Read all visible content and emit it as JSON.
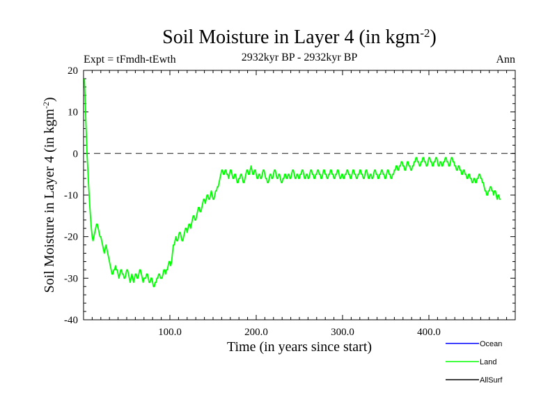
{
  "chart_data": {
    "type": "line",
    "title": "Soil Moisture in Layer 4 (in kgm",
    "title_sup": "-2",
    "title_close": ")",
    "subtitle": "2932kyr BP - 2932kyr BP",
    "left_label": "Expt = tFmdh-tEwth",
    "right_label": "Ann",
    "xlabel": "Time (in years since start)",
    "ylabel": "Soil Moisture in Layer 4 (in kgm",
    "ylabel_sup": "-2",
    "ylabel_close": ")",
    "xlim": [
      0,
      500
    ],
    "ylim": [
      -40,
      20
    ],
    "x_ticks": [
      100,
      200,
      300,
      400
    ],
    "x_tick_labels": [
      "100.0",
      "200.0",
      "300.0",
      "400.0"
    ],
    "y_ticks": [
      -40,
      -30,
      -20,
      -10,
      0,
      10,
      20
    ],
    "y_tick_labels": [
      "-40",
      "-30",
      "-20",
      "-10",
      "0",
      "10",
      "20"
    ],
    "reference_line": 0,
    "series": [
      {
        "name": "Land",
        "color": "#00ff00",
        "x_start": 1,
        "x_step": 1,
        "values": [
          18.0,
          12.0,
          6.0,
          0.0,
          -4.0,
          -8.0,
          -12.0,
          -15.0,
          -18.0,
          -20.0,
          -21.0,
          -20.0,
          -19.0,
          -18.0,
          -17.0,
          -17.0,
          -18.0,
          -19.0,
          -20.0,
          -20.0,
          -21.0,
          -22.0,
          -23.0,
          -24.0,
          -23.0,
          -22.0,
          -23.0,
          -24.0,
          -25.0,
          -26.0,
          -27.0,
          -28.0,
          -29.0,
          -29.0,
          -28.0,
          -28.0,
          -27.0,
          -28.0,
          -28.0,
          -29.0,
          -30.0,
          -29.0,
          -28.0,
          -28.0,
          -29.0,
          -29.0,
          -30.0,
          -30.0,
          -29.0,
          -28.0,
          -28.0,
          -29.0,
          -30.0,
          -31.0,
          -30.0,
          -29.0,
          -30.0,
          -31.0,
          -30.0,
          -29.0,
          -29.0,
          -30.0,
          -30.0,
          -29.0,
          -28.0,
          -28.0,
          -29.0,
          -30.0,
          -31.0,
          -30.0,
          -30.0,
          -30.0,
          -29.0,
          -29.0,
          -30.0,
          -31.0,
          -31.0,
          -30.0,
          -30.0,
          -31.0,
          -32.0,
          -32.0,
          -31.0,
          -31.0,
          -30.0,
          -30.0,
          -29.0,
          -29.0,
          -30.0,
          -30.0,
          -30.0,
          -29.0,
          -28.0,
          -28.0,
          -29.0,
          -28.0,
          -28.0,
          -27.0,
          -26.0,
          -26.0,
          -27.0,
          -26.0,
          -24.0,
          -22.0,
          -22.0,
          -21.0,
          -20.0,
          -21.0,
          -21.0,
          -20.0,
          -19.0,
          -19.0,
          -20.0,
          -21.0,
          -21.0,
          -20.0,
          -19.0,
          -18.0,
          -18.0,
          -19.0,
          -18.0,
          -17.0,
          -17.0,
          -18.0,
          -17.0,
          -16.0,
          -15.0,
          -15.0,
          -16.0,
          -16.0,
          -15.0,
          -14.0,
          -13.0,
          -13.0,
          -14.0,
          -14.0,
          -13.0,
          -12.0,
          -11.0,
          -11.0,
          -12.0,
          -11.0,
          -10.0,
          -10.0,
          -11.0,
          -11.0,
          -10.0,
          -9.0,
          -10.0,
          -11.0,
          -11.0,
          -10.0,
          -9.0,
          -9.0,
          -8.0,
          -8.0,
          -7.0,
          -6.0,
          -5.0,
          -4.0,
          -4.0,
          -5.0,
          -5.0,
          -4.0,
          -4.0,
          -5.0,
          -5.0,
          -6.0,
          -5.0,
          -4.0,
          -4.0,
          -5.0,
          -6.0,
          -6.0,
          -5.0,
          -5.0,
          -6.0,
          -7.0,
          -7.0,
          -6.0,
          -6.0,
          -5.0,
          -5.0,
          -6.0,
          -7.0,
          -7.0,
          -6.0,
          -5.0,
          -4.0,
          -4.0,
          -5.0,
          -5.0,
          -4.0,
          -3.0,
          -4.0,
          -5.0,
          -5.0,
          -4.0,
          -4.0,
          -5.0,
          -6.0,
          -6.0,
          -5.0,
          -5.0,
          -6.0,
          -6.0,
          -5.0,
          -4.0,
          -4.0,
          -5.0,
          -6.0,
          -6.0,
          -7.0,
          -7.0,
          -6.0,
          -5.0,
          -5.0,
          -6.0,
          -6.0,
          -5.0,
          -4.0,
          -4.0,
          -5.0,
          -6.0,
          -6.0,
          -5.0,
          -5.0,
          -6.0,
          -7.0,
          -7.0,
          -6.0,
          -6.0,
          -5.0,
          -5.0,
          -6.0,
          -6.0,
          -5.0,
          -5.0,
          -6.0,
          -6.0,
          -5.0,
          -4.0,
          -4.0,
          -5.0,
          -6.0,
          -6.0,
          -5.0,
          -5.0,
          -6.0,
          -6.0,
          -5.0,
          -5.0,
          -4.0,
          -4.0,
          -5.0,
          -6.0,
          -6.0,
          -5.0,
          -5.0,
          -6.0,
          -6.0,
          -5.0,
          -4.0,
          -4.0,
          -5.0,
          -5.0,
          -6.0,
          -6.0,
          -5.0,
          -5.0,
          -4.0,
          -4.0,
          -5.0,
          -5.0,
          -6.0,
          -6.0,
          -5.0,
          -4.0,
          -4.0,
          -5.0,
          -5.0,
          -6.0,
          -6.0,
          -5.0,
          -5.0,
          -4.0,
          -4.0,
          -5.0,
          -5.0,
          -6.0,
          -6.0,
          -5.0,
          -5.0,
          -4.0,
          -4.0,
          -5.0,
          -6.0,
          -6.0,
          -5.0,
          -5.0,
          -6.0,
          -6.0,
          -5.0,
          -5.0,
          -4.0,
          -4.0,
          -5.0,
          -5.0,
          -6.0,
          -6.0,
          -5.0,
          -4.0,
          -4.0,
          -5.0,
          -5.0,
          -6.0,
          -6.0,
          -5.0,
          -5.0,
          -4.0,
          -4.0,
          -5.0,
          -5.0,
          -6.0,
          -6.0,
          -5.0,
          -4.0,
          -4.0,
          -5.0,
          -6.0,
          -6.0,
          -5.0,
          -5.0,
          -6.0,
          -6.0,
          -5.0,
          -4.0,
          -4.0,
          -5.0,
          -5.0,
          -6.0,
          -6.0,
          -5.0,
          -5.0,
          -4.0,
          -4.0,
          -5.0,
          -5.0,
          -6.0,
          -6.0,
          -5.0,
          -4.0,
          -4.0,
          -5.0,
          -5.0,
          -6.0,
          -6.0,
          -5.0,
          -5.0,
          -4.0,
          -4.0,
          -3.0,
          -3.0,
          -4.0,
          -4.0,
          -3.0,
          -3.0,
          -2.0,
          -2.0,
          -3.0,
          -3.0,
          -4.0,
          -4.0,
          -3.0,
          -2.0,
          -2.0,
          -3.0,
          -3.0,
          -4.0,
          -4.0,
          -3.0,
          -3.0,
          -2.0,
          -2.0,
          -1.0,
          -1.0,
          -2.0,
          -2.0,
          -3.0,
          -3.0,
          -2.0,
          -2.0,
          -1.0,
          -1.0,
          -2.0,
          -2.0,
          -3.0,
          -3.0,
          -2.0,
          -1.0,
          -1.0,
          -2.0,
          -2.0,
          -3.0,
          -3.0,
          -2.0,
          -2.0,
          -1.0,
          -1.0,
          -2.0,
          -3.0,
          -3.0,
          -2.0,
          -2.0,
          -3.0,
          -3.0,
          -2.0,
          -2.0,
          -1.0,
          -1.0,
          -2.0,
          -2.0,
          -3.0,
          -3.0,
          -2.0,
          -1.0,
          -1.0,
          -2.0,
          -2.0,
          -3.0,
          -3.0,
          -4.0,
          -4.0,
          -3.0,
          -3.0,
          -4.0,
          -4.0,
          -5.0,
          -5.0,
          -4.0,
          -4.0,
          -5.0,
          -5.0,
          -6.0,
          -6.0,
          -5.0,
          -5.0,
          -6.0,
          -6.0,
          -7.0,
          -7.0,
          -6.0,
          -6.0,
          -7.0,
          -7.0,
          -6.0,
          -6.0,
          -5.0,
          -5.0,
          -6.0,
          -6.0,
          -7.0,
          -7.0,
          -8.0,
          -9.0,
          -9.0,
          -10.0,
          -10.0,
          -9.0,
          -9.0,
          -8.0,
          -8.0,
          -9.0,
          -9.0,
          -10.0,
          -9.0,
          -9.0,
          -10.0,
          -11.0,
          -10.0,
          -10.0,
          -11.0,
          -11.0
        ]
      },
      {
        "name": "Ocean",
        "color": "#0000ff"
      },
      {
        "name": "AllSurf",
        "color": "#000000"
      }
    ],
    "legend": [
      "Ocean",
      "Land",
      "AllSurf"
    ]
  }
}
